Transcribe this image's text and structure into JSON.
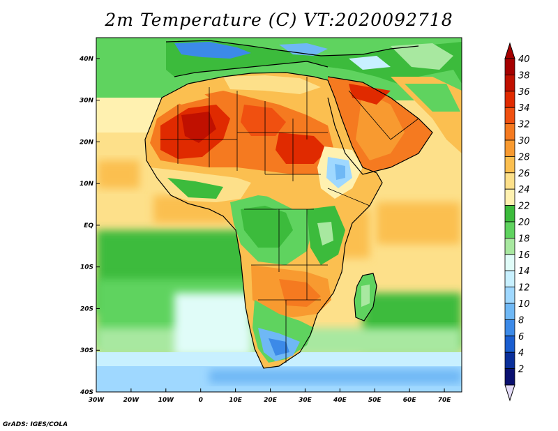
{
  "title": "2m Temperature (C) VT:2020092718",
  "credit": "GrADS: IGES/COLA",
  "map": {
    "variable": "2m Temperature",
    "unit": "C",
    "valid_time": "2020092718",
    "lon_range": [
      -30,
      75
    ],
    "lat_range": [
      -40,
      45
    ],
    "lon_ticks": [
      {
        "value": -30,
        "label": "30W"
      },
      {
        "value": -20,
        "label": "20W"
      },
      {
        "value": -10,
        "label": "10W"
      },
      {
        "value": 0,
        "label": "0"
      },
      {
        "value": 10,
        "label": "10E"
      },
      {
        "value": 20,
        "label": "20E"
      },
      {
        "value": 30,
        "label": "30E"
      },
      {
        "value": 40,
        "label": "40E"
      },
      {
        "value": 50,
        "label": "50E"
      },
      {
        "value": 60,
        "label": "60E"
      },
      {
        "value": 70,
        "label": "70E"
      }
    ],
    "lat_ticks": [
      {
        "value": 40,
        "label": "40N"
      },
      {
        "value": 30,
        "label": "30N"
      },
      {
        "value": 20,
        "label": "20N"
      },
      {
        "value": 10,
        "label": "10N"
      },
      {
        "value": 0,
        "label": "EQ"
      },
      {
        "value": -10,
        "label": "10S"
      },
      {
        "value": -20,
        "label": "20S"
      },
      {
        "value": -30,
        "label": "30S"
      },
      {
        "value": -40,
        "label": "40S"
      }
    ]
  },
  "colorbar": {
    "labels": [
      "40",
      "38",
      "36",
      "34",
      "32",
      "30",
      "28",
      "26",
      "24",
      "22",
      "20",
      "18",
      "16",
      "14",
      "12",
      "10",
      "8",
      "6",
      "4",
      "2"
    ],
    "colors_top_to_bottom": [
      "#a50000",
      "#c01000",
      "#e02a00",
      "#f05010",
      "#f57a20",
      "#f89a30",
      "#fbbf50",
      "#fde08a",
      "#fff1b0",
      "#3cbb3c",
      "#5fd35f",
      "#a8e8a0",
      "#e0fcf8",
      "#c8f0ff",
      "#9fd8ff",
      "#6fb8f5",
      "#3c8ae8",
      "#1a5ed0",
      "#0a2f9a",
      "#0a1070"
    ],
    "top_arrow_color": "#a50000",
    "bottom_arrow_color": "#e4dcf8"
  }
}
